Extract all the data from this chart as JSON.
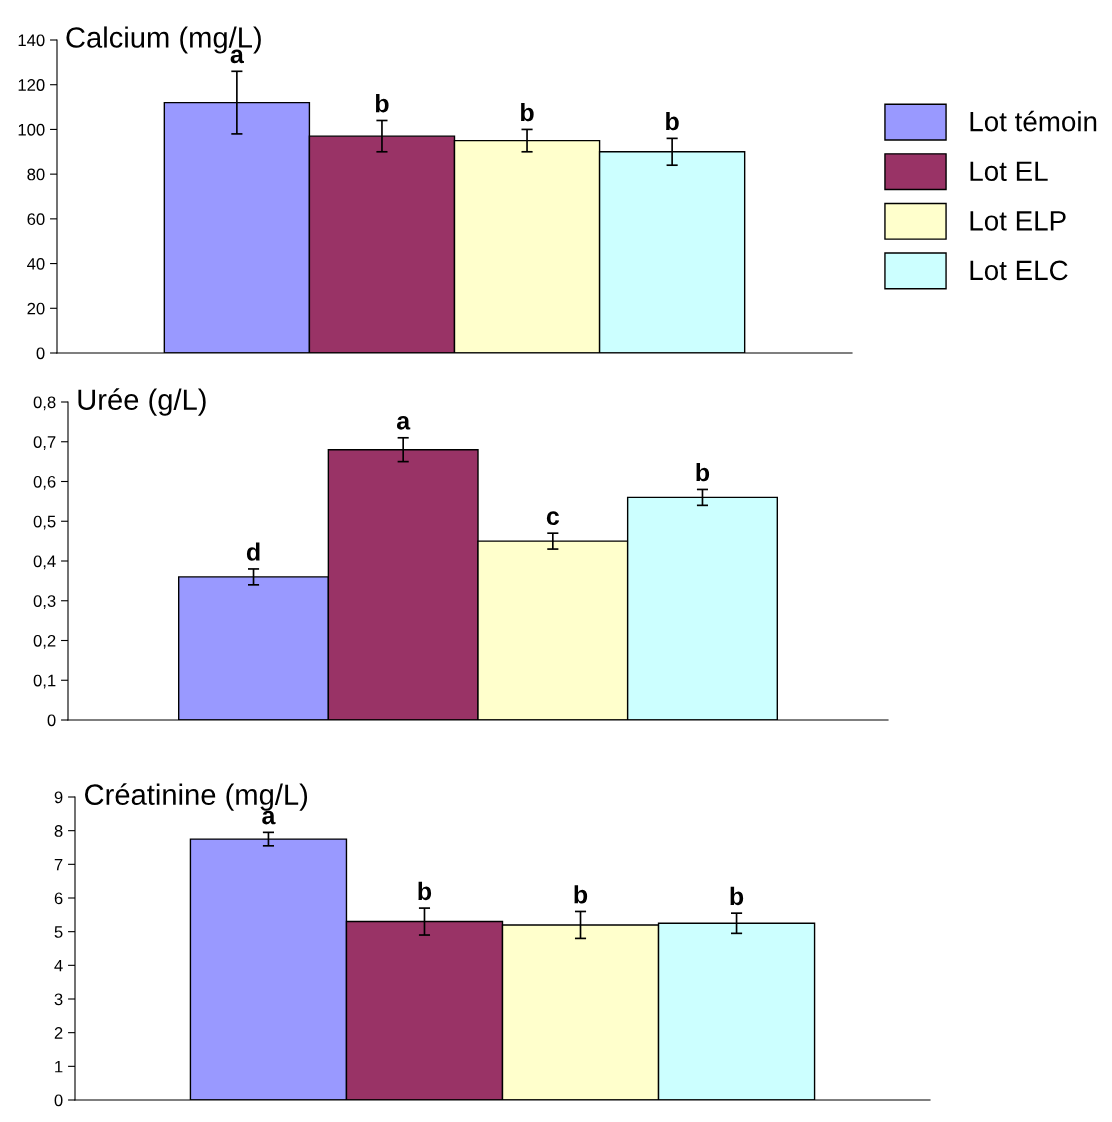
{
  "chart_data": [
    {
      "type": "bar",
      "title": "Calcium (mg/L)",
      "categories": [
        null
      ],
      "series": [
        {
          "name": "Lot témoin",
          "color": "#9999ff",
          "values": [
            112
          ],
          "errors": [
            14
          ]
        },
        {
          "name": "Lot EL",
          "color": "#993366",
          "values": [
            97
          ],
          "errors": [
            7
          ]
        },
        {
          "name": "Lot ELP",
          "color": "#ffffcc",
          "values": [
            95
          ],
          "errors": [
            5
          ]
        },
        {
          "name": "Lot ELC",
          "color": "#ccffff",
          "values": [
            90
          ],
          "errors": [
            6
          ]
        }
      ],
      "annotations": [
        "a",
        "b",
        "b",
        "b"
      ],
      "ylim": [
        0,
        140
      ],
      "yticks": [
        0,
        20,
        40,
        60,
        80,
        100,
        120,
        140
      ],
      "tick_labels": "y",
      "legend": "right",
      "grid": false
    },
    {
      "type": "bar",
      "title": "Urée (g/L)",
      "categories": [
        null
      ],
      "series": [
        {
          "color": "#9999ff",
          "values": [
            0.36
          ],
          "errors": [
            0.02
          ]
        },
        {
          "color": "#993366",
          "values": [
            0.68
          ],
          "errors": [
            0.03
          ]
        },
        {
          "color": "#ffffcc",
          "values": [
            0.45
          ],
          "errors": [
            0.02
          ]
        },
        {
          "color": "#ccffff",
          "values": [
            0.56
          ],
          "errors": [
            0.02
          ]
        }
      ],
      "annotations": [
        "d",
        "a",
        "c",
        "b"
      ],
      "ylim": [
        0,
        0.8
      ],
      "yticks": [
        0,
        {
          "value": 0.1,
          "label": "0,1"
        },
        {
          "value": 0.2,
          "label": "0,2"
        },
        {
          "value": 0.3,
          "label": "0,3"
        },
        {
          "value": 0.4,
          "label": "0,4"
        },
        {
          "value": 0.5,
          "label": "0,5"
        },
        {
          "value": 0.6,
          "label": "0,6"
        },
        {
          "value": 0.7,
          "label": "0,7"
        },
        {
          "value": 0.8,
          "label": "0,8"
        }
      ],
      "tick_labels": "y",
      "legend": false,
      "grid": false
    },
    {
      "type": "bar",
      "title": "Créatinine (mg/L)",
      "categories": [
        null
      ],
      "series": [
        {
          "color": "#9999ff",
          "values": [
            7.75
          ],
          "errors": [
            0.2
          ]
        },
        {
          "color": "#993366",
          "values": [
            5.3
          ],
          "errors": [
            0.4
          ]
        },
        {
          "color": "#ffffcc",
          "values": [
            5.2
          ],
          "errors": [
            0.4
          ]
        },
        {
          "color": "#ccffff",
          "values": [
            5.25
          ],
          "errors": [
            0.3
          ]
        }
      ],
      "annotations": [
        "a",
        "b",
        "b",
        "b"
      ],
      "ylim": [
        0,
        9
      ],
      "yticks": [
        0,
        1,
        2,
        3,
        4,
        5,
        6,
        7,
        8,
        9
      ],
      "tick_labels": "y",
      "legend": false,
      "grid": false
    }
  ]
}
